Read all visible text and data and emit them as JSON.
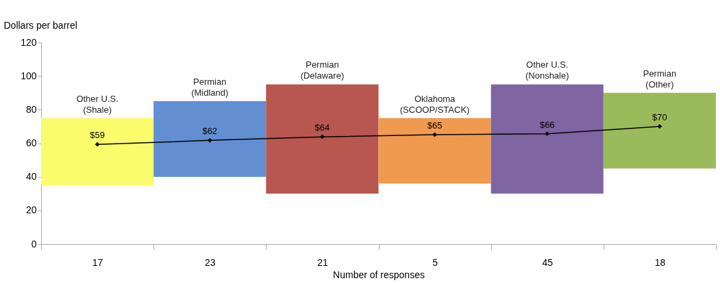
{
  "chart_data": {
    "type": "bar",
    "xlabel": "Number of responses",
    "ylabel": "Dollars per barrel",
    "categories": [
      "17",
      "23",
      "21",
      "5",
      "45",
      "18"
    ],
    "series": [
      {
        "values": [
          40,
          45,
          65,
          39,
          65,
          45
        ],
        "base": [
          35,
          40,
          30,
          36,
          30,
          45
        ],
        "colors": [
          "#fafc6c",
          "#638ed2",
          "#b85650",
          "#f09a50",
          "#7f65a2",
          "#9bba5c"
        ]
      },
      {
        "type": "line",
        "color": "#000000",
        "values": [
          59.3,
          61.7,
          63.8,
          65.1,
          65.6,
          70
        ],
        "value_labels": [
          "$59",
          "$62",
          "$64",
          "$65",
          "$66",
          "$70"
        ],
        "marker": "diamond"
      }
    ],
    "annotations": [
      "Other U.S.\n(Shale)",
      "Permian\n(Midland)",
      "Permian\n(Delaware)",
      "Oklahoma\n(SCOOP/STACK)",
      "Other U.S.\n(Nonshale)",
      "Permian\n(Other)"
    ],
    "ylim": [
      0,
      120
    ],
    "yticks": [
      0,
      20,
      40,
      60,
      80,
      100,
      120
    ],
    "grid": false
  }
}
